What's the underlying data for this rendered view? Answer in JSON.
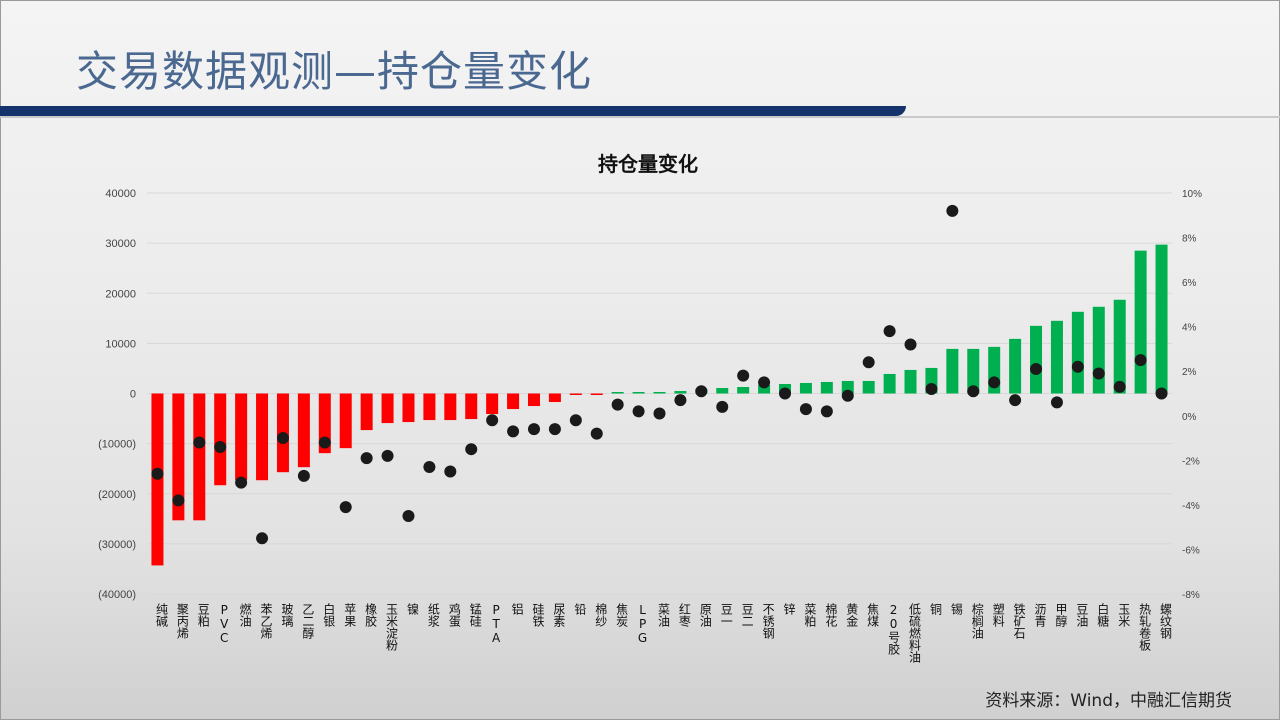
{
  "page_title": "交易数据观测—持仓量变化",
  "source": "资料来源：Wind，中融汇信期货",
  "colors": {
    "title": "#4a6890",
    "header_bar": "#14336b",
    "negative_bar": "#ff0000",
    "positive_bar": "#00b050",
    "dot": "#1a1a1a"
  },
  "chart_data": {
    "type": "bar",
    "title": "持仓量变化",
    "categories": [
      "纯碱",
      "聚丙烯",
      "豆粕",
      "PVC",
      "燃油",
      "苯乙烯",
      "玻璃",
      "乙二醇",
      "白银",
      "苹果",
      "橡胶",
      "玉米淀粉",
      "镍",
      "纸浆",
      "鸡蛋",
      "锰硅",
      "PTA",
      "铝",
      "硅铁",
      "尿素",
      "铅",
      "棉纱",
      "焦炭",
      "LPG",
      "菜油",
      "红枣",
      "原油",
      "豆一",
      "豆二",
      "不锈钢",
      "锌",
      "菜粕",
      "棉花",
      "黄金",
      "焦煤",
      "20号胶",
      "低硫燃料油",
      "铜",
      "锡",
      "棕榈油",
      "塑料",
      "铁矿石",
      "沥青",
      "甲醇",
      "豆油",
      "白糖",
      "玉米",
      "热轧卷板",
      "螺纹钢"
    ],
    "series": [
      {
        "type": "bar",
        "axis": "left",
        "values": [
          -34300,
          -25300,
          -25300,
          -18300,
          -17300,
          -17300,
          -15700,
          -14700,
          -11900,
          -10900,
          -7300,
          -5900,
          -5700,
          -5300,
          -5300,
          -5100,
          -4100,
          -3100,
          -2500,
          -1700,
          -300,
          -300,
          300,
          300,
          300,
          500,
          900,
          1100,
          1300,
          1700,
          1900,
          2100,
          2300,
          2500,
          2500,
          3900,
          4700,
          5100,
          8900,
          8900,
          9300,
          10900,
          13500,
          14500,
          16300,
          17300,
          18700,
          28500,
          29700
        ]
      },
      {
        "type": "scatter",
        "axis": "right",
        "unit": "%",
        "values": [
          -2.6,
          -3.8,
          -1.2,
          -1.4,
          -3.0,
          -5.5,
          -1.0,
          -2.7,
          -1.2,
          -4.1,
          -1.9,
          -1.8,
          -4.5,
          -2.3,
          -2.5,
          -1.5,
          -0.2,
          -0.7,
          -0.6,
          -0.6,
          -0.2,
          -0.8,
          0.5,
          0.2,
          0.1,
          0.7,
          1.1,
          0.4,
          1.8,
          1.5,
          1.0,
          0.3,
          0.2,
          0.9,
          2.4,
          3.8,
          3.2,
          1.2,
          9.2,
          1.1,
          1.5,
          0.7,
          2.1,
          0.6,
          2.2,
          1.9,
          1.3,
          2.5,
          1.0
        ]
      }
    ],
    "y_left": {
      "range": [
        -40000,
        40000
      ],
      "ticks": [
        "(40000)",
        "(30000)",
        "(20000)",
        "(10000)",
        "0",
        "10000",
        "20000",
        "30000",
        "40000"
      ]
    },
    "y_right": {
      "range": [
        -8,
        10
      ],
      "ticks": [
        "-8%",
        "-6%",
        "-4%",
        "-2%",
        "0%",
        "2%",
        "4%",
        "6%",
        "8%",
        "10%"
      ]
    },
    "grid": true,
    "legend": "none"
  }
}
